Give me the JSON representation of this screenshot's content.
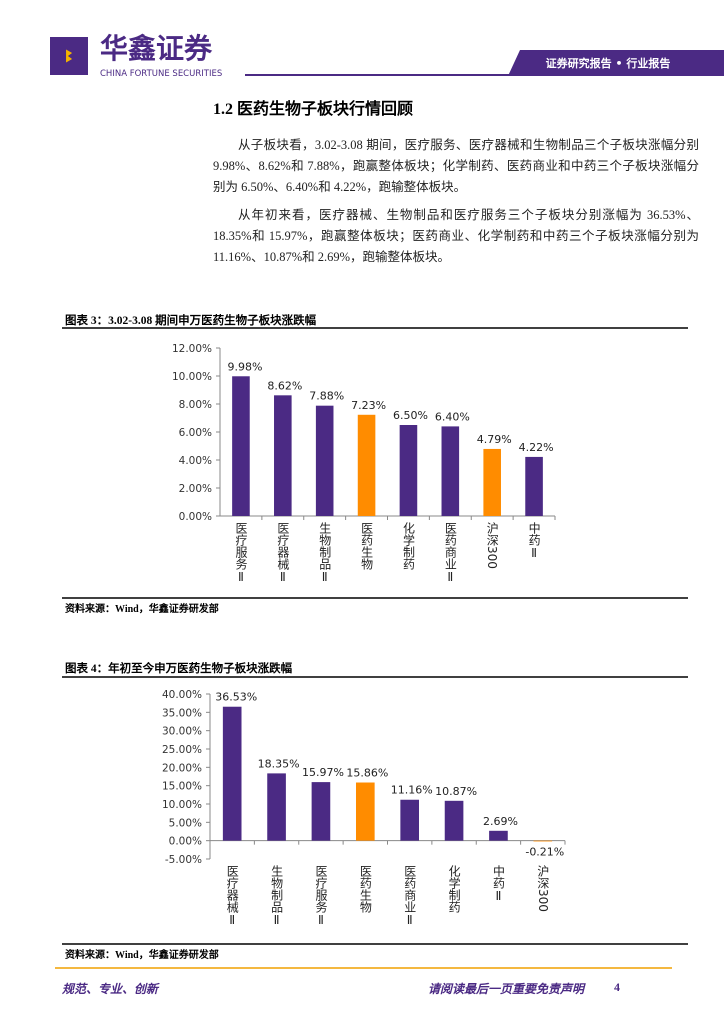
{
  "header": {
    "brand": "华鑫证券",
    "brand_en": "CHINA FORTUNE SECURITIES",
    "banner": "证券研究报告 • 行业报告"
  },
  "section": {
    "title": "1.2 医药生物子板块行情回顾",
    "paragraphs": [
      "从子板块看，3.02-3.08 期间，医疗服务、医疗器械和生物制品三个子板块涨幅分别 9.98%、8.62%和 7.88%，跑赢整体板块；化学制药、医药商业和中药三个子板块涨幅分别为 6.50%、6.40%和 4.22%，跑输整体板块。",
      "从年初来看，医疗器械、生物制品和医疗服务三个子板块分别涨幅为 36.53%、18.35%和 15.97%，跑赢整体板块；医药商业、化学制药和中药三个子板块涨幅分别为 11.16%、10.87%和 2.69%，跑输整体板块。"
    ]
  },
  "chart_data": [
    {
      "type": "bar",
      "title": "图表 3：3.02-3.08 期间申万医药生物子板块涨跌幅",
      "source": "资料来源：Wind，华鑫证券研发部",
      "categories": [
        "医疗服务Ⅱ",
        "医疗器械Ⅱ",
        "生物制品Ⅱ",
        "医药生物",
        "化学制药",
        "医药商业Ⅱ",
        "沪深300",
        "中药Ⅱ"
      ],
      "values": [
        9.98,
        8.62,
        7.88,
        7.23,
        6.5,
        6.4,
        4.79,
        4.22
      ],
      "value_labels": [
        "9.98%",
        "8.62%",
        "7.88%",
        "7.23%",
        "6.50%",
        "6.40%",
        "4.79%",
        "4.22%"
      ],
      "colors": [
        "#4b2a84",
        "#4b2a84",
        "#4b2a84",
        "#ff8c00",
        "#4b2a84",
        "#4b2a84",
        "#ff8c00",
        "#4b2a84"
      ],
      "ylim": [
        0,
        12
      ],
      "yticks": [
        {
          "value": 0,
          "label": "0.00%"
        },
        {
          "value": 2,
          "label": "2.00%"
        },
        {
          "value": 4,
          "label": "4.00%"
        },
        {
          "value": 6,
          "label": "6.00%"
        },
        {
          "value": 8,
          "label": "8.00%"
        },
        {
          "value": 10,
          "label": "10.00%"
        },
        {
          "value": 12,
          "label": "12.00%"
        }
      ]
    },
    {
      "type": "bar",
      "title": "图表 4：年初至今申万医药生物子板块涨跌幅",
      "source": "资料来源：Wind，华鑫证券研发部",
      "categories": [
        "医疗器械Ⅱ",
        "生物制品Ⅱ",
        "医疗服务Ⅱ",
        "医药生物",
        "医药商业Ⅱ",
        "化学制药",
        "中药Ⅱ",
        "沪深300"
      ],
      "values": [
        36.53,
        18.35,
        15.97,
        15.86,
        11.16,
        10.87,
        2.69,
        -0.21
      ],
      "value_labels": [
        "36.53%",
        "18.35%",
        "15.97%",
        "15.86%",
        "11.16%",
        "10.87%",
        "2.69%",
        "-0.21%"
      ],
      "colors": [
        "#4b2a84",
        "#4b2a84",
        "#4b2a84",
        "#ff8c00",
        "#4b2a84",
        "#4b2a84",
        "#4b2a84",
        "#ff8c00"
      ],
      "ylim": [
        -5,
        40
      ],
      "yticks": [
        {
          "value": -5,
          "label": "-5.00%"
        },
        {
          "value": 0,
          "label": "0.00%"
        },
        {
          "value": 5,
          "label": "5.00%"
        },
        {
          "value": 10,
          "label": "10.00%"
        },
        {
          "value": 15,
          "label": "15.00%"
        },
        {
          "value": 20,
          "label": "20.00%"
        },
        {
          "value": 25,
          "label": "25.00%"
        },
        {
          "value": 30,
          "label": "30.00%"
        },
        {
          "value": 35,
          "label": "35.00%"
        },
        {
          "value": 40,
          "label": "40.00%"
        }
      ]
    }
  ],
  "footer": {
    "slogan": "规范、专业、创新",
    "notice": "请阅读最后一页重要免责声明",
    "page": "4"
  }
}
